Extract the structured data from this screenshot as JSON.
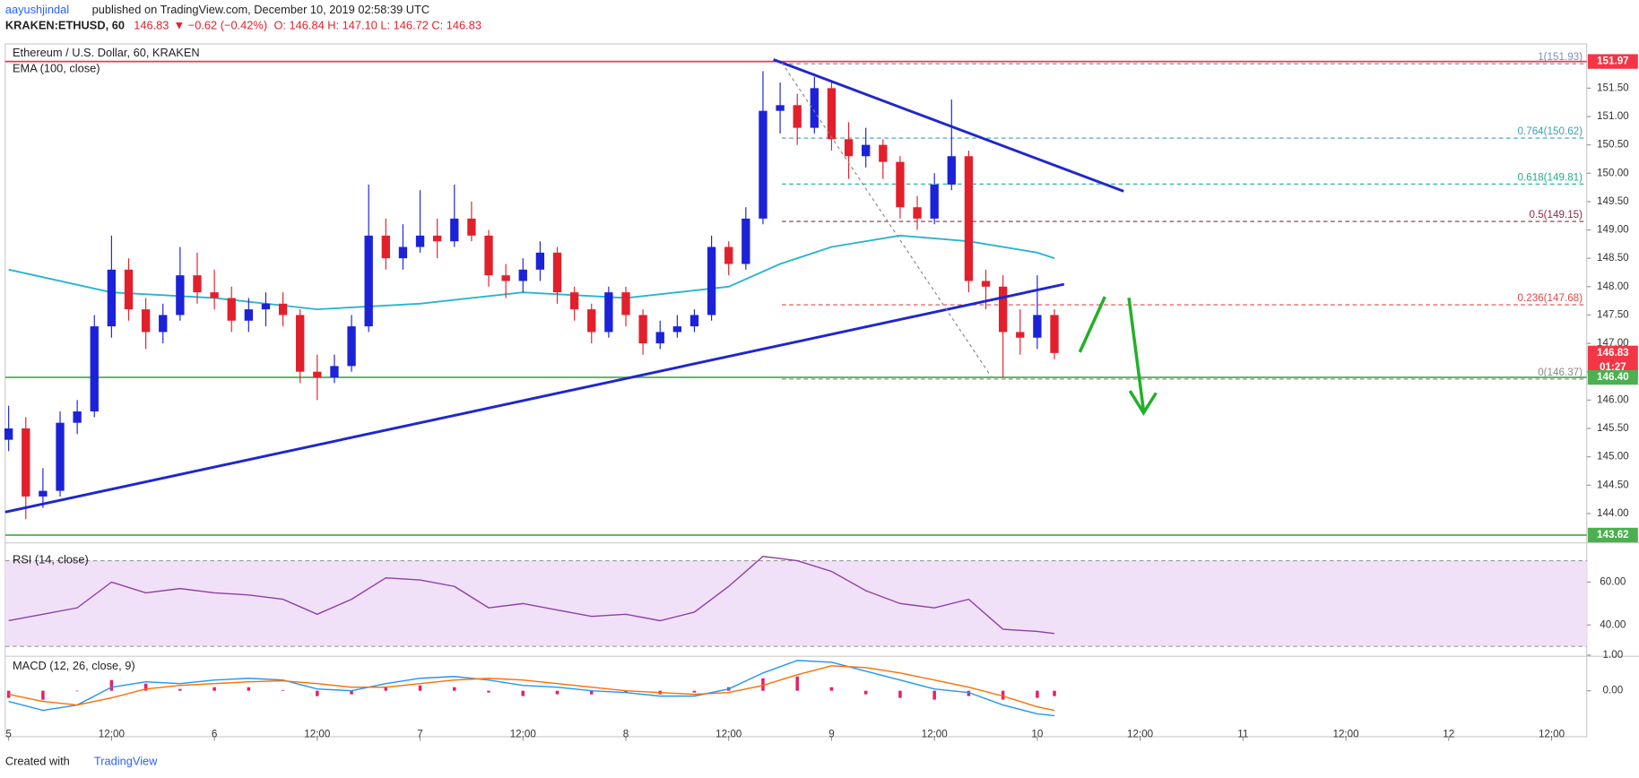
{
  "header": {
    "author": "aayushjindal",
    "published": "published on TradingView.com, December 10, 2019 02:58:39 UTC",
    "symbol": "KRAKEN:ETHUSD, 60",
    "last": "146.83",
    "change": "▼ −0.62 (−0.42%)",
    "ohlc": "O: 146.84 H: 147.10 L: 146.72 C: 146.83"
  },
  "footer": {
    "created": "Created with",
    "brand": "TradingView"
  },
  "chart_data": {
    "type": "candlestick",
    "title": "Ethereum / U.S. Dollar, 60, KRAKEN",
    "up_color": "#1c22d8",
    "down_color": "#e2202c",
    "xlim": [
      -0.4,
      184.1
    ],
    "xticks": [
      {
        "value": 0,
        "label": "5"
      },
      {
        "value": 12,
        "label": "12:00"
      },
      {
        "value": 24,
        "label": "6"
      },
      {
        "value": 36,
        "label": "12:00"
      },
      {
        "value": 48,
        "label": "7"
      },
      {
        "value": 60,
        "label": "12:00"
      },
      {
        "value": 72,
        "label": "8"
      },
      {
        "value": 84,
        "label": "12:00"
      },
      {
        "value": 96,
        "label": "9"
      },
      {
        "value": 108,
        "label": "12:00"
      },
      {
        "value": 120,
        "label": "10"
      },
      {
        "value": 132,
        "label": "12:00"
      },
      {
        "value": 144,
        "label": "11"
      },
      {
        "value": 156,
        "label": "12:00"
      },
      {
        "value": 168,
        "label": "12"
      },
      {
        "value": 180,
        "label": "12:00"
      }
    ],
    "ylim": [
      143.51,
      152.28
    ],
    "yticks": [
      {
        "value": 144,
        "label": "144.00"
      },
      {
        "value": 144.5,
        "label": "144.50"
      },
      {
        "value": 145,
        "label": "145.00"
      },
      {
        "value": 145.5,
        "label": "145.50"
      },
      {
        "value": 146,
        "label": "146.00"
      },
      {
        "value": 146.5,
        "label": "146.50"
      },
      {
        "value": 147,
        "label": "147.00"
      },
      {
        "value": 147.5,
        "label": "147.50"
      },
      {
        "value": 148,
        "label": "148.00"
      },
      {
        "value": 148.5,
        "label": "148.50"
      },
      {
        "value": 149,
        "label": "149.00"
      },
      {
        "value": 149.5,
        "label": "149.50"
      },
      {
        "value": 150,
        "label": "150.00"
      },
      {
        "value": 150.5,
        "label": "150.50"
      },
      {
        "value": 151,
        "label": "151.00"
      },
      {
        "value": 151.5,
        "label": "151.50"
      }
    ],
    "x": [
      0,
      2,
      4,
      6,
      8,
      10,
      12,
      14,
      16,
      18,
      20,
      22,
      24,
      26,
      28,
      30,
      32,
      34,
      36,
      38,
      40,
      42,
      44,
      46,
      48,
      50,
      52,
      54,
      56,
      58,
      60,
      62,
      64,
      66,
      68,
      70,
      72,
      74,
      76,
      78,
      80,
      82,
      84,
      86,
      88,
      90,
      92,
      94,
      96,
      98,
      100,
      102,
      104,
      106,
      108,
      110,
      112,
      114,
      116,
      118,
      120,
      122
    ],
    "ohlc": [
      [
        145.3,
        145.9,
        145.1,
        145.5
      ],
      [
        145.5,
        145.7,
        143.9,
        144.3
      ],
      [
        144.3,
        144.8,
        144.1,
        144.4
      ],
      [
        144.4,
        145.8,
        144.3,
        145.6
      ],
      [
        145.6,
        146.0,
        145.4,
        145.8
      ],
      [
        145.8,
        147.5,
        145.7,
        147.3
      ],
      [
        147.3,
        148.9,
        147.1,
        148.3
      ],
      [
        148.3,
        148.5,
        147.4,
        147.6
      ],
      [
        147.6,
        147.8,
        146.9,
        147.2
      ],
      [
        147.2,
        147.7,
        147.0,
        147.5
      ],
      [
        147.5,
        148.7,
        147.4,
        148.2
      ],
      [
        148.2,
        148.6,
        147.7,
        147.9
      ],
      [
        147.9,
        148.3,
        147.6,
        147.8
      ],
      [
        147.8,
        148.0,
        147.2,
        147.4
      ],
      [
        147.4,
        147.8,
        147.2,
        147.6
      ],
      [
        147.6,
        147.9,
        147.3,
        147.7
      ],
      [
        147.7,
        147.9,
        147.3,
        147.5
      ],
      [
        147.5,
        147.6,
        146.3,
        146.5
      ],
      [
        146.5,
        146.8,
        146.0,
        146.4
      ],
      [
        146.4,
        146.8,
        146.3,
        146.6
      ],
      [
        146.6,
        147.5,
        146.5,
        147.3
      ],
      [
        147.3,
        149.8,
        147.2,
        148.9
      ],
      [
        148.9,
        149.2,
        148.3,
        148.5
      ],
      [
        148.5,
        149.1,
        148.3,
        148.7
      ],
      [
        148.7,
        149.7,
        148.6,
        148.9
      ],
      [
        148.9,
        149.2,
        148.5,
        148.8
      ],
      [
        148.8,
        149.8,
        148.7,
        149.2
      ],
      [
        149.2,
        149.5,
        148.8,
        148.9
      ],
      [
        148.9,
        149.0,
        148.0,
        148.2
      ],
      [
        148.2,
        148.4,
        147.8,
        148.1
      ],
      [
        148.1,
        148.5,
        147.9,
        148.3
      ],
      [
        148.3,
        148.8,
        148.1,
        148.6
      ],
      [
        148.6,
        148.7,
        147.7,
        147.9
      ],
      [
        147.9,
        148.0,
        147.4,
        147.6
      ],
      [
        147.6,
        147.7,
        147.0,
        147.2
      ],
      [
        147.2,
        148.0,
        147.1,
        147.9
      ],
      [
        147.9,
        148.0,
        147.3,
        147.5
      ],
      [
        147.5,
        147.6,
        146.8,
        147.0
      ],
      [
        147.0,
        147.4,
        146.9,
        147.2
      ],
      [
        147.2,
        147.5,
        147.1,
        147.3
      ],
      [
        147.3,
        147.6,
        147.2,
        147.5
      ],
      [
        147.5,
        148.9,
        147.4,
        148.7
      ],
      [
        148.7,
        148.8,
        148.2,
        148.4
      ],
      [
        148.4,
        149.4,
        148.3,
        149.2
      ],
      [
        149.2,
        151.8,
        149.1,
        151.1
      ],
      [
        151.1,
        151.6,
        150.7,
        151.2
      ],
      [
        151.2,
        151.4,
        150.5,
        150.8
      ],
      [
        150.8,
        151.7,
        150.7,
        151.5
      ],
      [
        151.5,
        151.6,
        150.4,
        150.6
      ],
      [
        150.6,
        150.9,
        149.9,
        150.3
      ],
      [
        150.3,
        150.8,
        150.1,
        150.5
      ],
      [
        150.5,
        150.6,
        149.9,
        150.2
      ],
      [
        150.2,
        150.3,
        149.2,
        149.4
      ],
      [
        149.4,
        149.6,
        149.0,
        149.2
      ],
      [
        149.2,
        150.0,
        149.1,
        149.8
      ],
      [
        149.8,
        151.3,
        149.7,
        150.3
      ],
      [
        150.3,
        150.4,
        147.9,
        148.1
      ],
      [
        148.1,
        148.3,
        147.6,
        148.0
      ],
      [
        148.0,
        148.2,
        146.4,
        147.2
      ],
      [
        147.2,
        147.6,
        146.8,
        147.1
      ],
      [
        147.1,
        148.2,
        146.9,
        147.5
      ],
      [
        147.5,
        147.6,
        146.72,
        146.83
      ]
    ],
    "ema": {
      "name": "EMA (100, close)",
      "color": "#28b4d0",
      "x": [
        0,
        12,
        24,
        36,
        48,
        60,
        72,
        84,
        90,
        96,
        104,
        112,
        120,
        122
      ],
      "values": [
        148.3,
        147.9,
        147.8,
        147.6,
        147.7,
        147.9,
        147.8,
        148.0,
        148.4,
        148.7,
        148.9,
        148.8,
        148.6,
        148.5
      ]
    },
    "levels": [
      {
        "value": 151.97,
        "label": "151.97",
        "color": "#f23645"
      },
      {
        "value": 146.83,
        "label": "146.83",
        "color": "#f23645"
      },
      {
        "value": 146.4,
        "label": "146.40",
        "color": "#4caf50"
      },
      {
        "value": 143.62,
        "label": "143.62",
        "color": "#4caf50"
      }
    ],
    "countdown": "01:27",
    "fib": [
      {
        "value": 151.93,
        "label": "1(151.93)",
        "color": "#7b8fb8"
      },
      {
        "value": 150.62,
        "label": "0.764(150.62)",
        "color": "#3c9fb0"
      },
      {
        "value": 149.81,
        "label": "0.618(149.81)",
        "color": "#1fae8a"
      },
      {
        "value": 149.15,
        "label": "0.5(149.15)",
        "color": "#8a2b40"
      },
      {
        "value": 147.68,
        "label": "0.236(147.68)",
        "color": "#e04848"
      },
      {
        "value": 146.37,
        "label": "0(146.37)",
        "color": "#8a8a8a"
      }
    ],
    "osc_x": [
      0,
      4,
      8,
      12,
      16,
      20,
      24,
      28,
      32,
      36,
      40,
      44,
      48,
      52,
      56,
      60,
      64,
      68,
      72,
      76,
      80,
      84,
      88,
      92,
      96,
      100,
      104,
      108,
      112,
      116,
      120,
      122
    ],
    "rsi": {
      "name": "RSI (14, close)",
      "color": "#8e3fa8",
      "ylim": [
        25.9,
        77.1
      ],
      "band": [
        30,
        70
      ],
      "yticks": [
        {
          "value": 60,
          "label": "60.00"
        },
        {
          "value": 40,
          "label": "40.00"
        }
      ],
      "values": [
        42,
        45,
        48,
        60,
        55,
        57,
        55,
        54,
        52,
        45,
        52,
        62,
        61,
        58,
        48,
        50,
        47,
        44,
        45,
        42,
        46,
        58,
        72,
        70,
        65,
        56,
        50,
        48,
        52,
        38,
        37,
        36
      ]
    },
    "macd": {
      "name": "MACD (12, 26, close, 9)",
      "ylim": [
        -1.29,
        0.91
      ],
      "yticks": [
        {
          "value": 1,
          "label": "1.00"
        },
        {
          "value": 0,
          "label": "0.00"
        }
      ],
      "macd_color": "#2196f3",
      "signal_color": "#ff6d00",
      "hist_color": "#e91e63",
      "macd": [
        -0.3,
        -0.55,
        -0.4,
        0.1,
        0.25,
        0.2,
        0.3,
        0.35,
        0.3,
        0.05,
        0.0,
        0.2,
        0.35,
        0.4,
        0.3,
        0.15,
        0.1,
        0.0,
        -0.05,
        -0.15,
        -0.15,
        0.05,
        0.5,
        0.85,
        0.8,
        0.55,
        0.3,
        0.05,
        -0.05,
        -0.4,
        -0.65,
        -0.7
      ],
      "signal": [
        -0.1,
        -0.3,
        -0.4,
        -0.2,
        0.05,
        0.15,
        0.2,
        0.25,
        0.28,
        0.2,
        0.1,
        0.1,
        0.2,
        0.3,
        0.35,
        0.3,
        0.2,
        0.1,
        0.0,
        -0.05,
        -0.1,
        -0.05,
        0.15,
        0.45,
        0.7,
        0.65,
        0.5,
        0.3,
        0.1,
        -0.15,
        -0.45,
        -0.55
      ],
      "hist": [
        -0.2,
        -0.25,
        0,
        0.3,
        0.2,
        0.05,
        0.1,
        0.1,
        0.02,
        -0.15,
        -0.1,
        0.1,
        0.15,
        0.1,
        -0.05,
        -0.15,
        -0.1,
        -0.1,
        -0.05,
        -0.1,
        -0.05,
        0.1,
        0.35,
        0.4,
        0.1,
        -0.1,
        -0.2,
        -0.25,
        -0.15,
        -0.25,
        -0.2,
        -0.15
      ]
    }
  }
}
